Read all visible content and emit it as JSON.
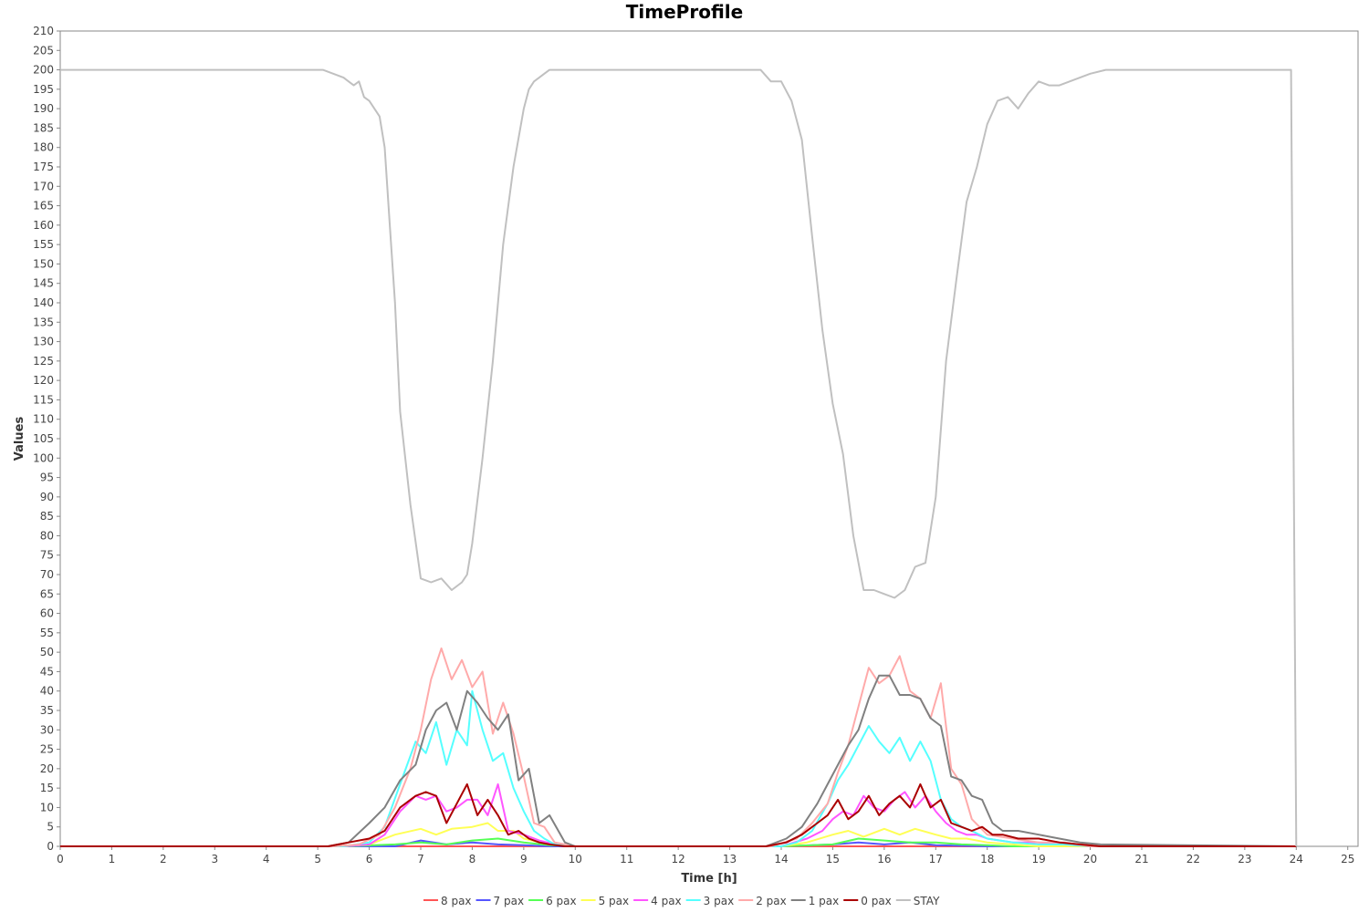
{
  "chart_data": {
    "type": "line",
    "title": "TimeProfile",
    "xlabel": "Time [h]",
    "ylabel": "Values",
    "xlim": [
      0,
      25.2
    ],
    "ylim": [
      0,
      210
    ],
    "x_ticks": [
      0,
      1,
      2,
      3,
      4,
      5,
      6,
      7,
      8,
      9,
      10,
      11,
      12,
      13,
      14,
      15,
      16,
      17,
      18,
      19,
      20,
      21,
      22,
      23,
      24,
      25
    ],
    "y_ticks": [
      0,
      5,
      10,
      15,
      20,
      25,
      30,
      35,
      40,
      45,
      50,
      55,
      60,
      65,
      70,
      75,
      80,
      85,
      90,
      95,
      100,
      105,
      110,
      115,
      120,
      125,
      130,
      135,
      140,
      145,
      150,
      155,
      160,
      165,
      170,
      175,
      180,
      185,
      190,
      195,
      200,
      205,
      210
    ],
    "grid": false,
    "legend_position": "bottom",
    "series": [
      {
        "name": "8 pax",
        "color": "#ff5555",
        "x": [
          0,
          5,
          6,
          7,
          8,
          9,
          10,
          13.5,
          14,
          15,
          16,
          17,
          18,
          19,
          20,
          24
        ],
        "y": [
          0,
          0,
          0,
          0,
          0,
          0,
          0,
          0,
          0,
          0,
          0,
          0,
          0,
          0,
          0,
          0
        ]
      },
      {
        "name": "7 pax",
        "color": "#5555ff",
        "x": [
          0,
          5.5,
          6.5,
          7,
          7.5,
          8,
          8.5,
          9,
          9.5,
          10,
          14,
          15,
          15.5,
          16,
          16.5,
          17,
          18,
          24
        ],
        "y": [
          0,
          0,
          0,
          1.5,
          0.5,
          1,
          0.5,
          0.3,
          0,
          0,
          0,
          0.5,
          1,
          0.5,
          1,
          0.3,
          0,
          0
        ]
      },
      {
        "name": "6 pax",
        "color": "#55ff55",
        "x": [
          0,
          5.5,
          6.5,
          7,
          7.5,
          8,
          8.5,
          9,
          9.5,
          10,
          14,
          15,
          15.5,
          16,
          16.5,
          17,
          17.5,
          18,
          18.5,
          19,
          24
        ],
        "y": [
          0,
          0,
          0.5,
          1,
          0.5,
          1.5,
          2,
          1,
          0.3,
          0,
          0,
          0.5,
          2,
          1.5,
          1,
          1,
          0.5,
          0.3,
          0,
          0,
          0
        ]
      },
      {
        "name": "5 pax",
        "color": "#ffff55",
        "x": [
          0,
          5.5,
          6,
          6.5,
          7,
          7.3,
          7.6,
          8,
          8.3,
          8.5,
          8.8,
          9,
          9.5,
          10,
          14,
          14.5,
          15,
          15.3,
          15.6,
          16,
          16.3,
          16.6,
          17,
          17.3,
          17.6,
          18,
          18.5,
          19,
          24
        ],
        "y": [
          0,
          0,
          0.5,
          3,
          4.5,
          3,
          4.5,
          5,
          6,
          4,
          4,
          2,
          0.5,
          0,
          0,
          1,
          3,
          4,
          2.5,
          4.5,
          3,
          4.5,
          3,
          2,
          2,
          1,
          0.5,
          0,
          0
        ]
      },
      {
        "name": "4 pax",
        "color": "#ff55ff",
        "x": [
          0,
          5.5,
          6,
          6.3,
          6.6,
          6.9,
          7.1,
          7.3,
          7.5,
          7.7,
          7.9,
          8.1,
          8.3,
          8.5,
          8.7,
          9,
          9.3,
          9.6,
          10,
          14,
          14.5,
          14.8,
          15,
          15.2,
          15.4,
          15.6,
          15.8,
          16,
          16.2,
          16.4,
          16.6,
          16.8,
          17,
          17.2,
          17.4,
          17.6,
          17.8,
          18,
          18.5,
          19,
          19.5,
          20,
          24
        ],
        "y": [
          0,
          0,
          0.5,
          3,
          9,
          13,
          12,
          13,
          9,
          10,
          12,
          12,
          8,
          16,
          4,
          3,
          1.5,
          0.5,
          0,
          0,
          2,
          4,
          7,
          9,
          8,
          13,
          10,
          9,
          12,
          14,
          10,
          13,
          9,
          6,
          4,
          3,
          3,
          2,
          1,
          1,
          0.5,
          0,
          0
        ]
      },
      {
        "name": "3 pax",
        "color": "#55ffff",
        "x": [
          0,
          5.5,
          6,
          6.3,
          6.6,
          6.9,
          7.1,
          7.3,
          7.5,
          7.7,
          7.9,
          8.0,
          8.2,
          8.4,
          8.6,
          8.8,
          9,
          9.2,
          9.4,
          9.6,
          10,
          14,
          14.3,
          14.6,
          14.9,
          15.1,
          15.3,
          15.5,
          15.7,
          15.9,
          16.1,
          16.3,
          16.5,
          16.7,
          16.9,
          17.1,
          17.3,
          17.5,
          17.7,
          18,
          18.5,
          19,
          19.5,
          20,
          24
        ],
        "y": [
          0,
          0,
          1,
          5,
          16,
          27,
          24,
          32,
          21,
          30,
          26,
          40,
          30,
          22,
          24,
          15,
          9,
          4,
          2,
          0.5,
          0,
          0,
          1,
          4,
          11,
          17,
          21,
          26,
          31,
          27,
          24,
          28,
          22,
          27,
          22,
          12,
          7,
          5,
          4,
          2,
          1,
          0.5,
          0.5,
          0,
          0
        ]
      },
      {
        "name": "2 pax",
        "color": "#ffaaaa",
        "x": [
          0,
          5.3,
          5.8,
          6.2,
          6.5,
          6.8,
          7.0,
          7.2,
          7.4,
          7.6,
          7.8,
          8.0,
          8.2,
          8.4,
          8.6,
          8.8,
          9.0,
          9.2,
          9.4,
          9.6,
          10,
          13.8,
          14.3,
          14.6,
          14.9,
          15.1,
          15.3,
          15.5,
          15.7,
          15.9,
          16.1,
          16.3,
          16.5,
          16.7,
          16.9,
          17.1,
          17.3,
          17.5,
          17.7,
          18,
          18.5,
          19,
          19.5,
          20,
          24
        ],
        "y": [
          0,
          0,
          0.5,
          3,
          10,
          20,
          30,
          43,
          51,
          43,
          48,
          41,
          45,
          29,
          37,
          29,
          18,
          6,
          5,
          1,
          0,
          0,
          2,
          6,
          11,
          19,
          26,
          36,
          46,
          42,
          44,
          49,
          40,
          38,
          33,
          42,
          20,
          16,
          7,
          3,
          2,
          1,
          1,
          0,
          0
        ]
      },
      {
        "name": "1 pax",
        "color": "#808080",
        "x": [
          0,
          5.2,
          5.6,
          6.0,
          6.3,
          6.6,
          6.9,
          7.1,
          7.3,
          7.5,
          7.7,
          7.9,
          8.1,
          8.3,
          8.5,
          8.7,
          8.9,
          9.1,
          9.3,
          9.5,
          9.8,
          10,
          13.7,
          14.1,
          14.4,
          14.7,
          14.9,
          15.1,
          15.3,
          15.5,
          15.7,
          15.9,
          16.1,
          16.3,
          16.5,
          16.7,
          16.9,
          17.1,
          17.3,
          17.5,
          17.7,
          17.9,
          18.1,
          18.3,
          18.6,
          19,
          19.4,
          19.8,
          20.2,
          24
        ],
        "y": [
          0,
          0,
          1,
          6,
          10,
          17,
          21,
          30,
          35,
          37,
          30,
          40,
          37,
          33,
          30,
          34,
          17,
          20,
          6,
          8,
          1,
          0,
          0,
          2,
          5,
          11,
          16,
          21,
          26,
          30,
          38,
          44,
          44,
          39,
          39,
          38,
          33,
          31,
          18,
          17,
          13,
          12,
          6,
          4,
          4,
          3,
          2,
          1,
          0.5,
          0
        ]
      },
      {
        "name": "0 pax",
        "color": "#aa0000",
        "x": [
          0,
          5.2,
          5.6,
          6.0,
          6.3,
          6.6,
          6.9,
          7.1,
          7.3,
          7.5,
          7.7,
          7.9,
          8.1,
          8.3,
          8.5,
          8.7,
          8.9,
          9.1,
          9.3,
          9.5,
          9.8,
          10,
          13.7,
          14.1,
          14.4,
          14.7,
          14.9,
          15.1,
          15.3,
          15.5,
          15.7,
          15.9,
          16.1,
          16.3,
          16.5,
          16.7,
          16.9,
          17.1,
          17.3,
          17.5,
          17.7,
          17.9,
          18.1,
          18.3,
          18.6,
          19,
          19.4,
          19.8,
          20.2,
          24
        ],
        "y": [
          0,
          0,
          1,
          2,
          4,
          10,
          13,
          14,
          13,
          6,
          11,
          16,
          8,
          12,
          8,
          3,
          4,
          2,
          1,
          0.5,
          0,
          0,
          0,
          1,
          3,
          6,
          8,
          12,
          7,
          9,
          13,
          8,
          11,
          13,
          10,
          16,
          10,
          12,
          6,
          5,
          4,
          5,
          3,
          3,
          2,
          2,
          1,
          0.5,
          0,
          0
        ]
      },
      {
        "name": "STAY",
        "color": "#c0c0c0",
        "x": [
          0,
          5.1,
          5.3,
          5.5,
          5.7,
          5.8,
          5.9,
          6.0,
          6.2,
          6.3,
          6.4,
          6.5,
          6.6,
          6.8,
          7.0,
          7.2,
          7.4,
          7.6,
          7.8,
          7.9,
          8.0,
          8.2,
          8.4,
          8.6,
          8.8,
          9.0,
          9.1,
          9.2,
          9.3,
          9.4,
          9.5,
          9.6,
          9.7,
          9.8,
          10,
          13.6,
          13.8,
          14.0,
          14.2,
          14.4,
          14.6,
          14.8,
          15.0,
          15.2,
          15.4,
          15.6,
          15.8,
          16.0,
          16.2,
          16.4,
          16.6,
          16.8,
          17.0,
          17.2,
          17.4,
          17.6,
          17.8,
          18.0,
          18.2,
          18.4,
          18.6,
          18.8,
          19.0,
          19.2,
          19.4,
          19.6,
          19.8,
          20.0,
          20.3,
          23.9,
          24.0
        ],
        "y": [
          200,
          200,
          199,
          198,
          196,
          197,
          193,
          192,
          188,
          180,
          160,
          140,
          112,
          88,
          69,
          68,
          69,
          66,
          68,
          70,
          78,
          100,
          125,
          155,
          175,
          190,
          195,
          197,
          198,
          199,
          200,
          200,
          200,
          200,
          200,
          200,
          197,
          197,
          192,
          182,
          157,
          133,
          114,
          101,
          80,
          66,
          66,
          65,
          64,
          66,
          72,
          73,
          90,
          125,
          146,
          166,
          175,
          186,
          192,
          193,
          190,
          194,
          197,
          196,
          196,
          197,
          198,
          199,
          200,
          200,
          0
        ]
      }
    ]
  }
}
